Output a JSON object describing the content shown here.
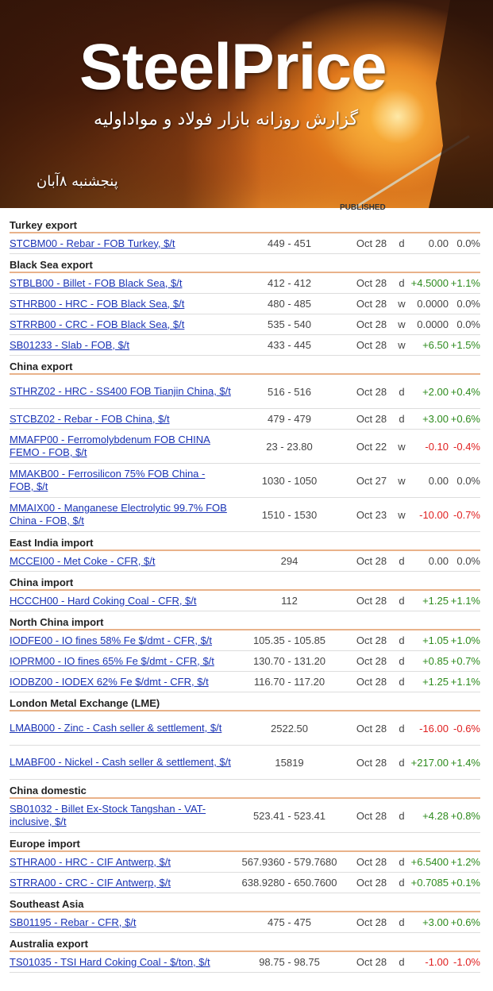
{
  "header": {
    "logo": "SteelPrice",
    "subtitle": "گزارش روزانه بازار فولاد و مواداولیه",
    "date": "پنجشنبه ۸آبان",
    "published_label": "PUBLISHED"
  },
  "sections": [
    {
      "title": "Turkey export",
      "rows": [
        {
          "name": "STCBM00 - Rebar - FOB Turkey, $/t",
          "price": "449 - 451",
          "date": "Oct 28",
          "freq": "d",
          "change": "0.00",
          "pct": "0.0%",
          "dir": "zero"
        }
      ]
    },
    {
      "title": "Black Sea export",
      "rows": [
        {
          "name": "STBLB00 - Billet - FOB Black Sea, $/t",
          "price": "412 - 412",
          "date": "Oct 28",
          "freq": "d",
          "change": "+4.5000",
          "pct": "+1.1%",
          "dir": "pos"
        },
        {
          "name": "STHRB00 - HRC - FOB Black Sea, $/t",
          "price": "480 - 485",
          "date": "Oct 28",
          "freq": "w",
          "change": "0.0000",
          "pct": "0.0%",
          "dir": "zero"
        },
        {
          "name": "STRRB00 - CRC - FOB Black Sea, $/t",
          "price": "535 - 540",
          "date": "Oct 28",
          "freq": "w",
          "change": "0.0000",
          "pct": "0.0%",
          "dir": "zero"
        },
        {
          "name": "SB01233 - Slab - FOB, $/t",
          "price": "433 - 445",
          "date": "Oct 28",
          "freq": "w",
          "change": "+6.50",
          "pct": "+1.5%",
          "dir": "pos"
        }
      ]
    },
    {
      "title": "China export",
      "rows": [
        {
          "name": "STHRZ02 - HRC - SS400 FOB Tianjin China, $/t",
          "price": "516 - 516",
          "date": "Oct 28",
          "freq": "d",
          "change": "+2.00",
          "pct": "+0.4%",
          "dir": "pos",
          "tall": true
        },
        {
          "name": "STCBZ02 - Rebar - FOB China, $/t",
          "price": "479 - 479",
          "date": "Oct 28",
          "freq": "d",
          "change": "+3.00",
          "pct": "+0.6%",
          "dir": "pos"
        },
        {
          "name": "MMAFP00 - Ferromolybdenum FOB CHINA FEMO - FOB, $/t",
          "price": "23 - 23.80",
          "date": "Oct 22",
          "freq": "w",
          "change": "-0.10",
          "pct": "-0.4%",
          "dir": "neg",
          "tall": true
        },
        {
          "name": "MMAKB00 - Ferrosilicon 75% FOB China - FOB, $/t",
          "price": "1030 - 1050",
          "date": "Oct 27",
          "freq": "w",
          "change": "0.00",
          "pct": "0.0%",
          "dir": "zero",
          "tall": true
        },
        {
          "name": "MMAIX00 - Manganese Electrolytic 99.7% FOB China - FOB, $/t",
          "price": "1510 - 1530",
          "date": "Oct 23",
          "freq": "w",
          "change": "-10.00",
          "pct": "-0.7%",
          "dir": "neg",
          "tall": true
        }
      ]
    },
    {
      "title": "East India import",
      "rows": [
        {
          "name": "MCCEI00 - Met Coke - CFR, $/t",
          "price": "294",
          "date": "Oct 28",
          "freq": "d",
          "change": "0.00",
          "pct": "0.0%",
          "dir": "zero"
        }
      ]
    },
    {
      "title": "China import",
      "rows": [
        {
          "name": "HCCCH00 - Hard Coking Coal - CFR, $/t",
          "price": "112",
          "date": "Oct 28",
          "freq": "d",
          "change": "+1.25",
          "pct": "+1.1%",
          "dir": "pos"
        }
      ]
    },
    {
      "title": "North China import",
      "rows": [
        {
          "name": "IODFE00 - IO fines 58% Fe $/dmt - CFR, $/t",
          "price": "105.35 - 105.85",
          "date": "Oct 28",
          "freq": "d",
          "change": "+1.05",
          "pct": "+1.0%",
          "dir": "pos"
        },
        {
          "name": "IOPRM00 - IO fines 65% Fe $/dmt - CFR, $/t",
          "price": "130.70 - 131.20",
          "date": "Oct 28",
          "freq": "d",
          "change": "+0.85",
          "pct": "+0.7%",
          "dir": "pos"
        },
        {
          "name": "IODBZ00 - IODEX 62% Fe $/dmt - CFR, $/t",
          "price": "116.70 - 117.20",
          "date": "Oct 28",
          "freq": "d",
          "change": "+1.25",
          "pct": "+1.1%",
          "dir": "pos"
        }
      ]
    },
    {
      "title": "London Metal Exchange (LME)",
      "rows": [
        {
          "name": "LMAB000 - Zinc - Cash seller & settlement, $/t",
          "price": "2522.50",
          "date": "Oct 28",
          "freq": "d",
          "change": "-16.00",
          "pct": "-0.6%",
          "dir": "neg",
          "tall": true
        },
        {
          "name": "LMABF00 - Nickel - Cash seller & settlement, $/t",
          "price": "15819",
          "date": "Oct 28",
          "freq": "d",
          "change": "+217.00",
          "pct": "+1.4%",
          "dir": "pos",
          "tall": true
        }
      ]
    },
    {
      "title": "China domestic",
      "rows": [
        {
          "name": "SB01032 - Billet Ex-Stock Tangshan - VAT-inclusive, $/t",
          "price": "523.41 - 523.41",
          "date": "Oct 28",
          "freq": "d",
          "change": "+4.28",
          "pct": "+0.8%",
          "dir": "pos",
          "tall": true
        }
      ]
    },
    {
      "title": "Europe import",
      "rows": [
        {
          "name": "STHRA00 - HRC - CIF Antwerp, $/t",
          "price": "567.9360 - 579.7680",
          "date": "Oct 28",
          "freq": "d",
          "change": "+6.5400",
          "pct": "+1.2%",
          "dir": "pos"
        },
        {
          "name": "STRRA00 - CRC - CIF Antwerp, $/t",
          "price": "638.9280 - 650.7600",
          "date": "Oct 28",
          "freq": "d",
          "change": "+0.7085",
          "pct": "+0.1%",
          "dir": "pos"
        }
      ]
    },
    {
      "title": "Southeast Asia",
      "rows": [
        {
          "name": "SB01195 - Rebar - CFR, $/t",
          "price": "475 - 475",
          "date": "Oct 28",
          "freq": "d",
          "change": "+3.00",
          "pct": "+0.6%",
          "dir": "pos"
        }
      ]
    },
    {
      "title": "Australia export",
      "rows": [
        {
          "name": "TS01035 - TSI Hard Coking Coal - $/ton, $/t",
          "price": "98.75 - 98.75",
          "date": "Oct 28",
          "freq": "d",
          "change": "-1.00",
          "pct": "-1.0%",
          "dir": "neg"
        }
      ]
    }
  ]
}
